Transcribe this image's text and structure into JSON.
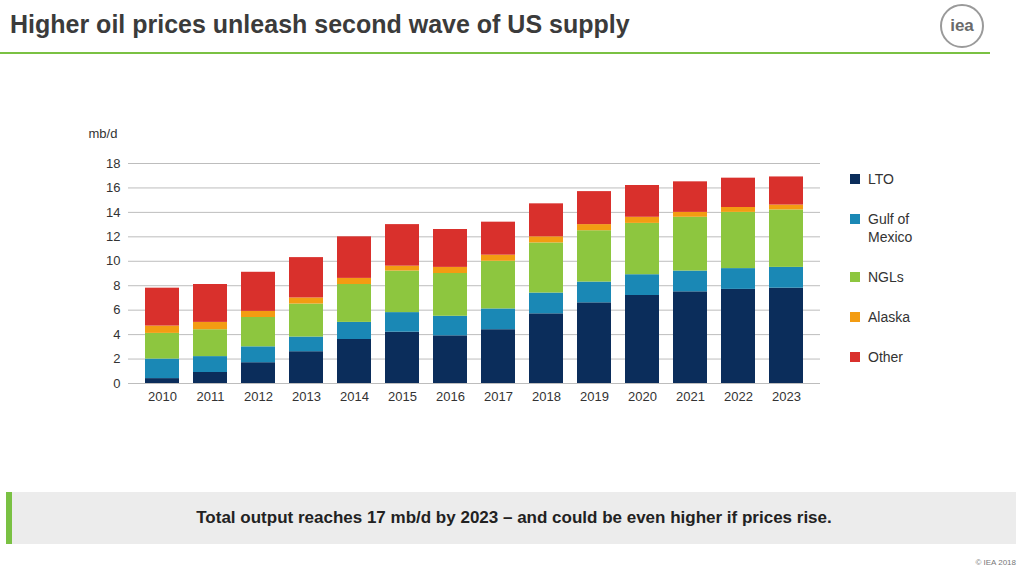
{
  "chart_data": {
    "type": "bar",
    "title": "Higher oil prices unleash second wave of US supply",
    "logo": "iea",
    "caption": "Total output reaches 17 mb/d by 2023 – and could be even higher if prices rise.",
    "source": "© IEA 2018",
    "ylabel": "mb/d",
    "categories": [
      "2010",
      "2011",
      "2012",
      "2013",
      "2014",
      "2015",
      "2016",
      "2017",
      "2018",
      "2019",
      "2020",
      "2021",
      "2022",
      "2023"
    ],
    "series": [
      {
        "name": "LTO",
        "color": "#0b2d5b",
        "values": [
          0.4,
          0.9,
          1.7,
          2.6,
          3.6,
          4.2,
          3.9,
          4.4,
          5.7,
          6.6,
          7.2,
          7.5,
          7.7,
          7.8
        ]
      },
      {
        "name": "Gulf of Mexico",
        "color": "#1a88b5",
        "values": [
          1.6,
          1.3,
          1.3,
          1.2,
          1.4,
          1.6,
          1.6,
          1.7,
          1.7,
          1.7,
          1.7,
          1.7,
          1.7,
          1.7
        ]
      },
      {
        "name": "NGLs",
        "color": "#8dc63f",
        "values": [
          2.1,
          2.2,
          2.4,
          2.7,
          3.1,
          3.4,
          3.5,
          3.9,
          4.1,
          4.2,
          4.2,
          4.4,
          4.6,
          4.7
        ]
      },
      {
        "name": "Alaska",
        "color": "#f39c12",
        "values": [
          0.6,
          0.6,
          0.5,
          0.5,
          0.5,
          0.4,
          0.5,
          0.5,
          0.5,
          0.5,
          0.5,
          0.4,
          0.4,
          0.4
        ]
      },
      {
        "name": "Other",
        "color": "#d9302c",
        "values": [
          3.1,
          3.1,
          3.2,
          3.3,
          3.4,
          3.4,
          3.1,
          2.7,
          2.7,
          2.7,
          2.6,
          2.5,
          2.4,
          2.3
        ]
      }
    ],
    "ylim": [
      0,
      18
    ],
    "yticks": [
      0,
      2,
      4,
      6,
      8,
      10,
      12,
      14,
      16,
      18
    ],
    "stacked": true,
    "grid": true,
    "legend": "right",
    "data_labels": false
  }
}
